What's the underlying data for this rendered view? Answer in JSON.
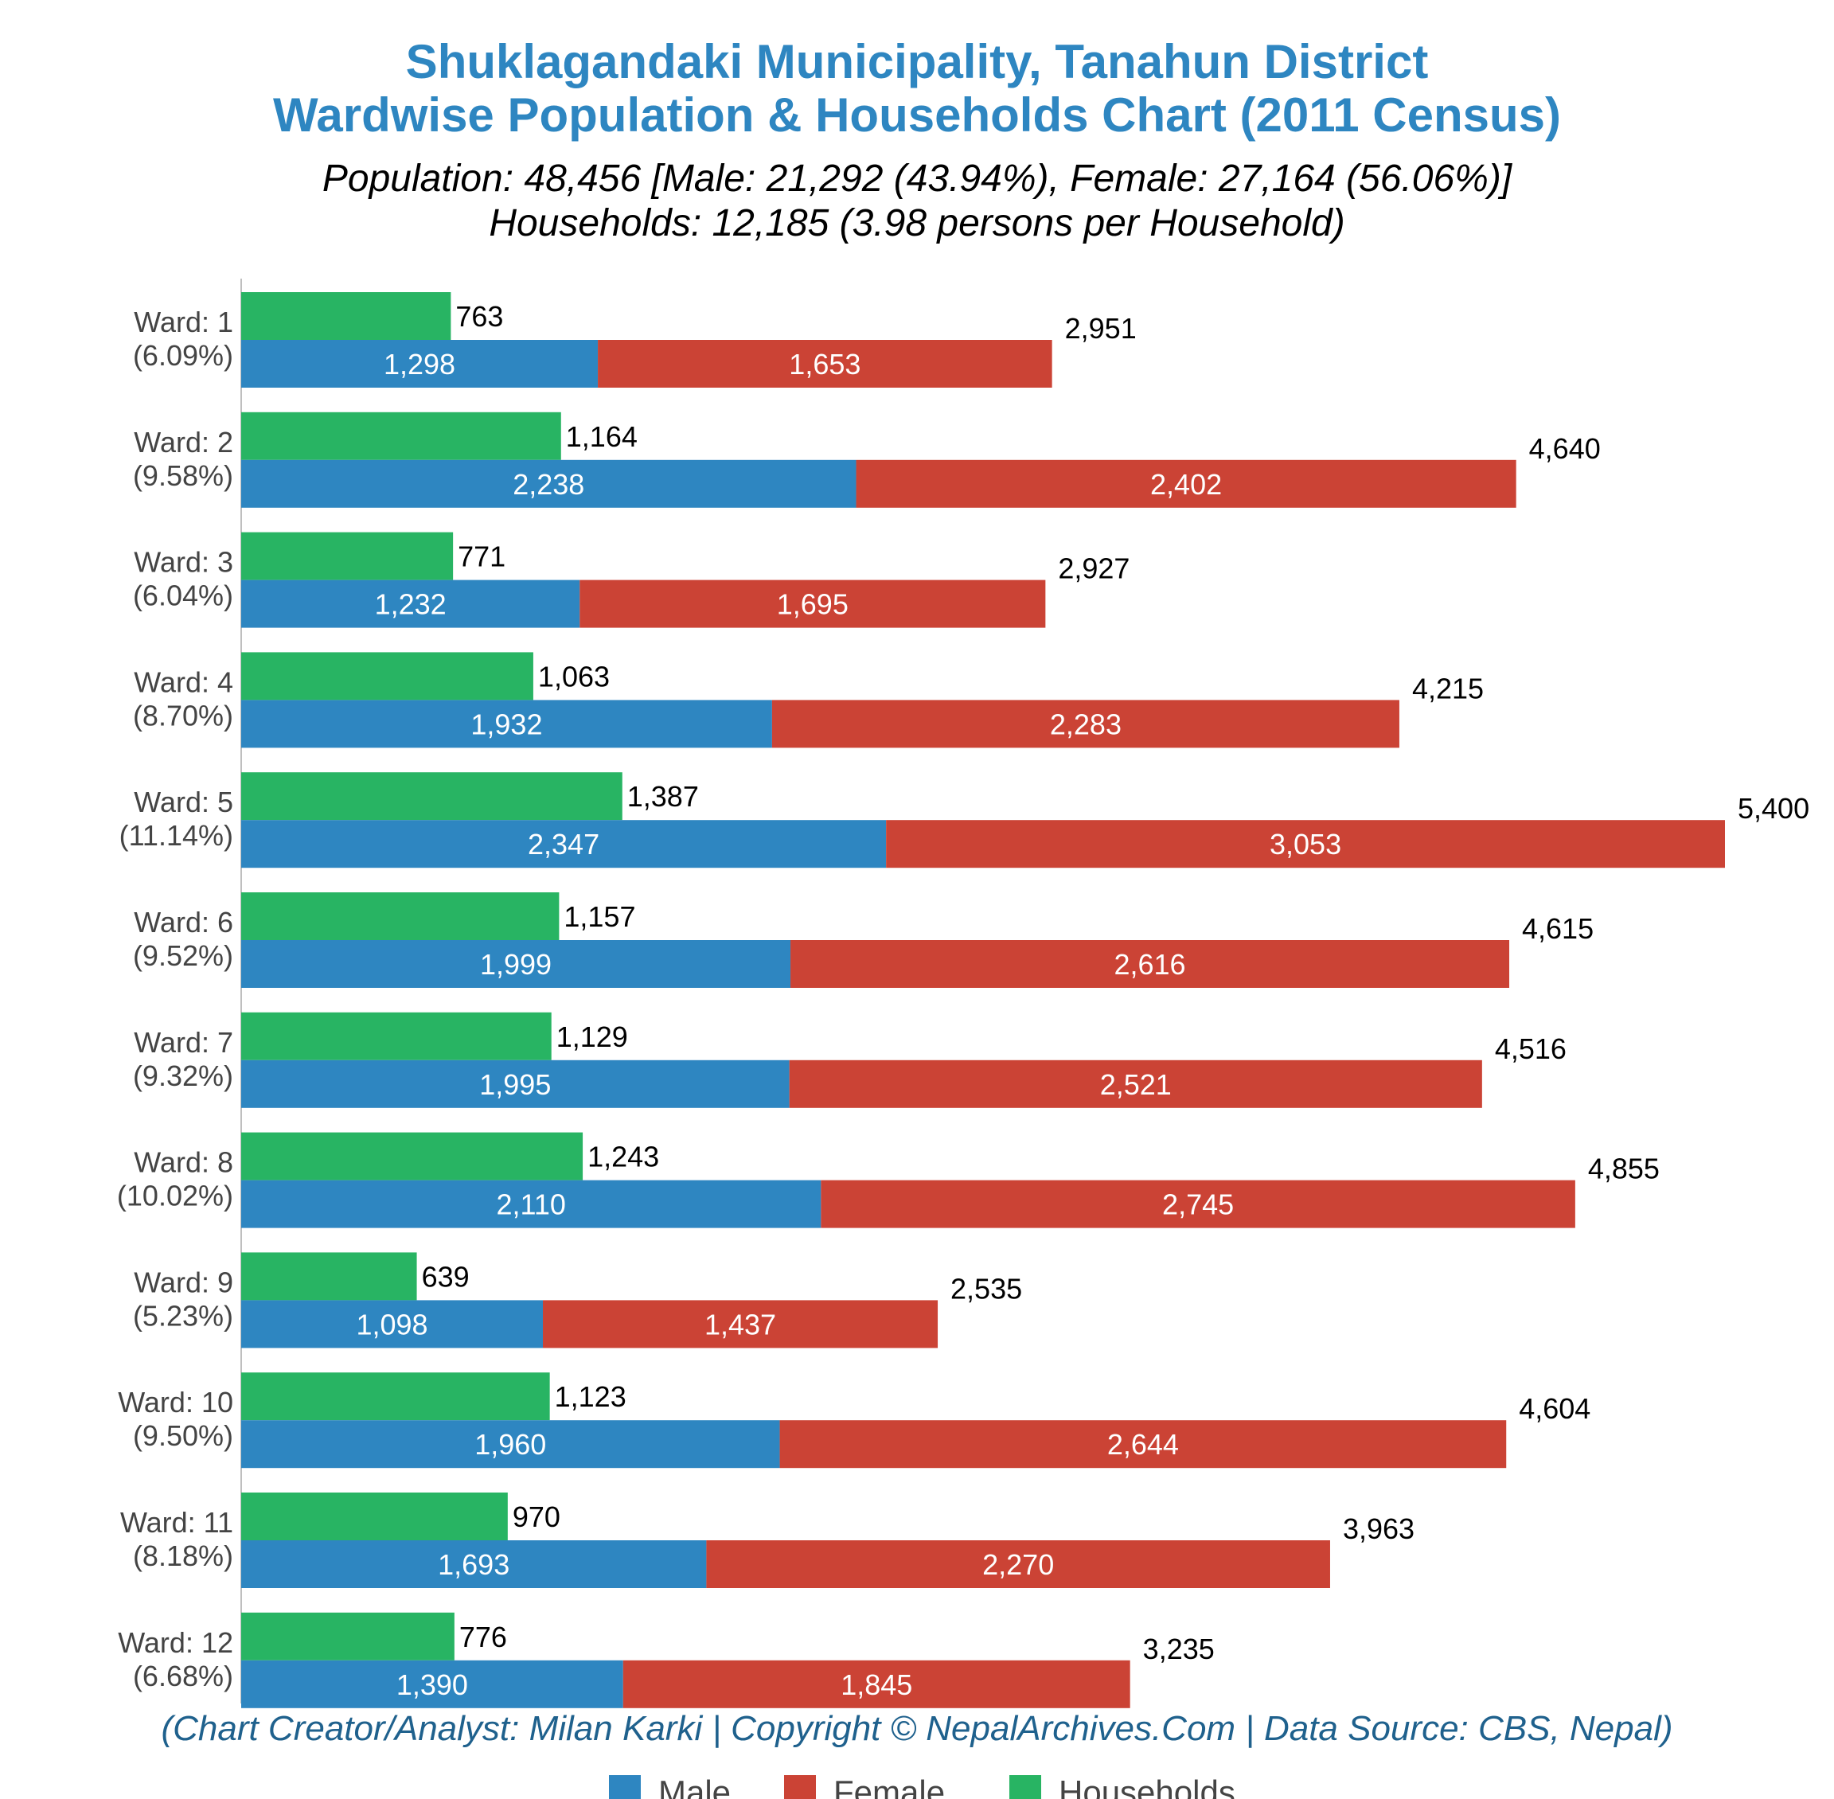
{
  "chart_data": {
    "type": "bar",
    "title_line1": "Shuklagandaki Municipality, Tanahun District",
    "title_line2": "Wardwise Population & Households Chart (2011 Census)",
    "subtitle_line1": "Population: 48,456 [Male: 21,292 (43.94%), Female: 27,164 (56.06%)]",
    "subtitle_line2": "Households: 12,185 (3.98 persons per Household)",
    "credit": "(Chart Creator/Analyst: Milan Karki | Copyright © NepalArchives.Com | Data Source: CBS, Nepal)",
    "orientation": "horizontal",
    "stacked_series": [
      "Male",
      "Female"
    ],
    "xlim": [
      0,
      5400
    ],
    "grid": false,
    "legend_position": "bottom",
    "colors": {
      "Male": "#2e86c1",
      "Female": "#cb4335",
      "Households": "#28b463",
      "title": "#2e86c1",
      "credit": "#1f618d"
    },
    "categories": [
      "Ward: 1",
      "Ward: 2",
      "Ward: 3",
      "Ward: 4",
      "Ward: 5",
      "Ward: 6",
      "Ward: 7",
      "Ward: 8",
      "Ward: 9",
      "Ward: 10",
      "Ward: 11",
      "Ward: 12"
    ],
    "category_shares": [
      "(6.09%)",
      "(9.58%)",
      "(6.04%)",
      "(8.70%)",
      "(11.14%)",
      "(9.52%)",
      "(9.32%)",
      "(10.02%)",
      "(5.23%)",
      "(9.50%)",
      "(8.18%)",
      "(6.68%)"
    ],
    "series": [
      {
        "name": "Male",
        "values": [
          1298,
          2238,
          1232,
          1932,
          2347,
          1999,
          1995,
          2110,
          1098,
          1960,
          1693,
          1390
        ]
      },
      {
        "name": "Female",
        "values": [
          1653,
          2402,
          1695,
          2283,
          3053,
          2616,
          2521,
          2745,
          1437,
          2644,
          2270,
          1845
        ]
      },
      {
        "name": "Households",
        "values": [
          763,
          1164,
          771,
          1063,
          1387,
          1157,
          1129,
          1243,
          639,
          1123,
          970,
          776
        ]
      }
    ],
    "totals": [
      2951,
      4640,
      2927,
      4215,
      5400,
      4615,
      4516,
      4855,
      2535,
      4604,
      3963,
      3235
    ],
    "legend": [
      "Male",
      "Female",
      "Households"
    ]
  }
}
